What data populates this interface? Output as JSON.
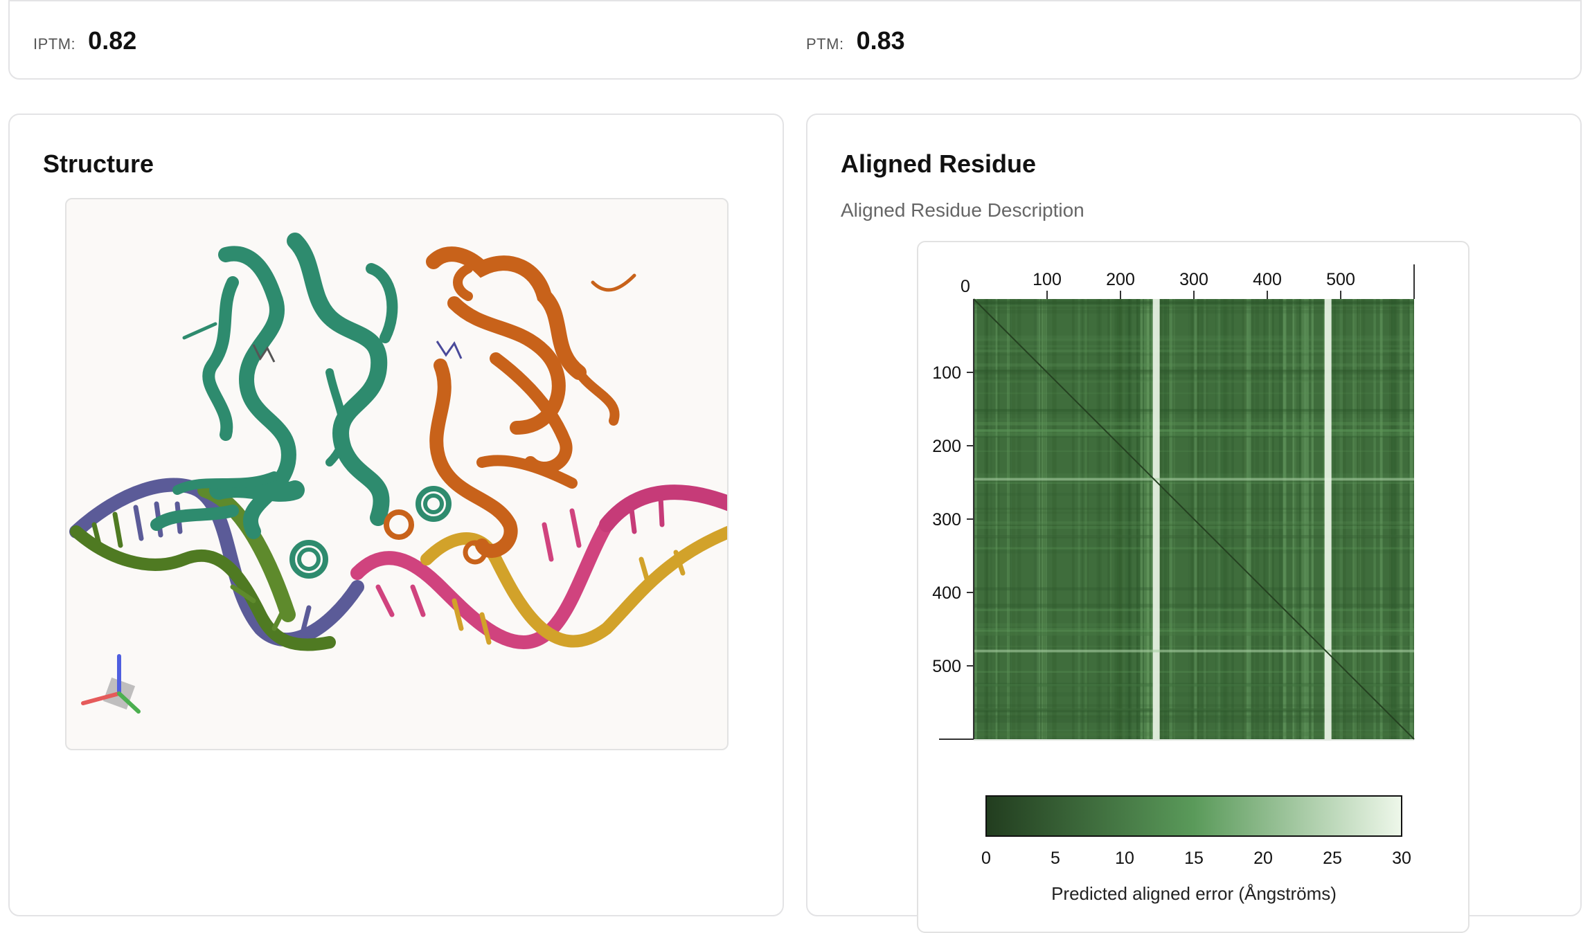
{
  "metrics": {
    "iptm_label": "IPTM:",
    "iptm_value": "0.82",
    "ptm_label": "PTM:",
    "ptm_value": "0.83"
  },
  "structure": {
    "title": "Structure"
  },
  "aligned": {
    "title": "Aligned Residue",
    "description": "Aligned Residue Description"
  },
  "chart_data": {
    "type": "heatmap",
    "title": "",
    "x_ticks": [
      "0",
      "100",
      "200",
      "300",
      "400",
      "500"
    ],
    "y_ticks": [
      "100",
      "200",
      "300",
      "400",
      "500"
    ],
    "axis_range": [
      0,
      600
    ],
    "colorbar": {
      "label": "Predicted aligned error (Ångströms)",
      "ticks": [
        "0",
        "5",
        "10",
        "15",
        "20",
        "25",
        "30"
      ],
      "range": [
        0,
        30
      ],
      "color_low": "#223d1f",
      "color_mid": "#5a9a5a",
      "color_high": "#eef7ea"
    },
    "high_error_bands": [
      244,
      250,
      478,
      484
    ],
    "notes_diagonal_error": 0
  },
  "colors": {
    "chain_a": "#2e8b6e",
    "chain_b": "#c8621a",
    "dna_1": "#5b5b98",
    "dna_2": "#5e8a2c",
    "dna_3": "#d0437e",
    "dna_4": "#d2a22a"
  },
  "icons": {
    "axes_gizmo": "xyz-axes-icon"
  }
}
